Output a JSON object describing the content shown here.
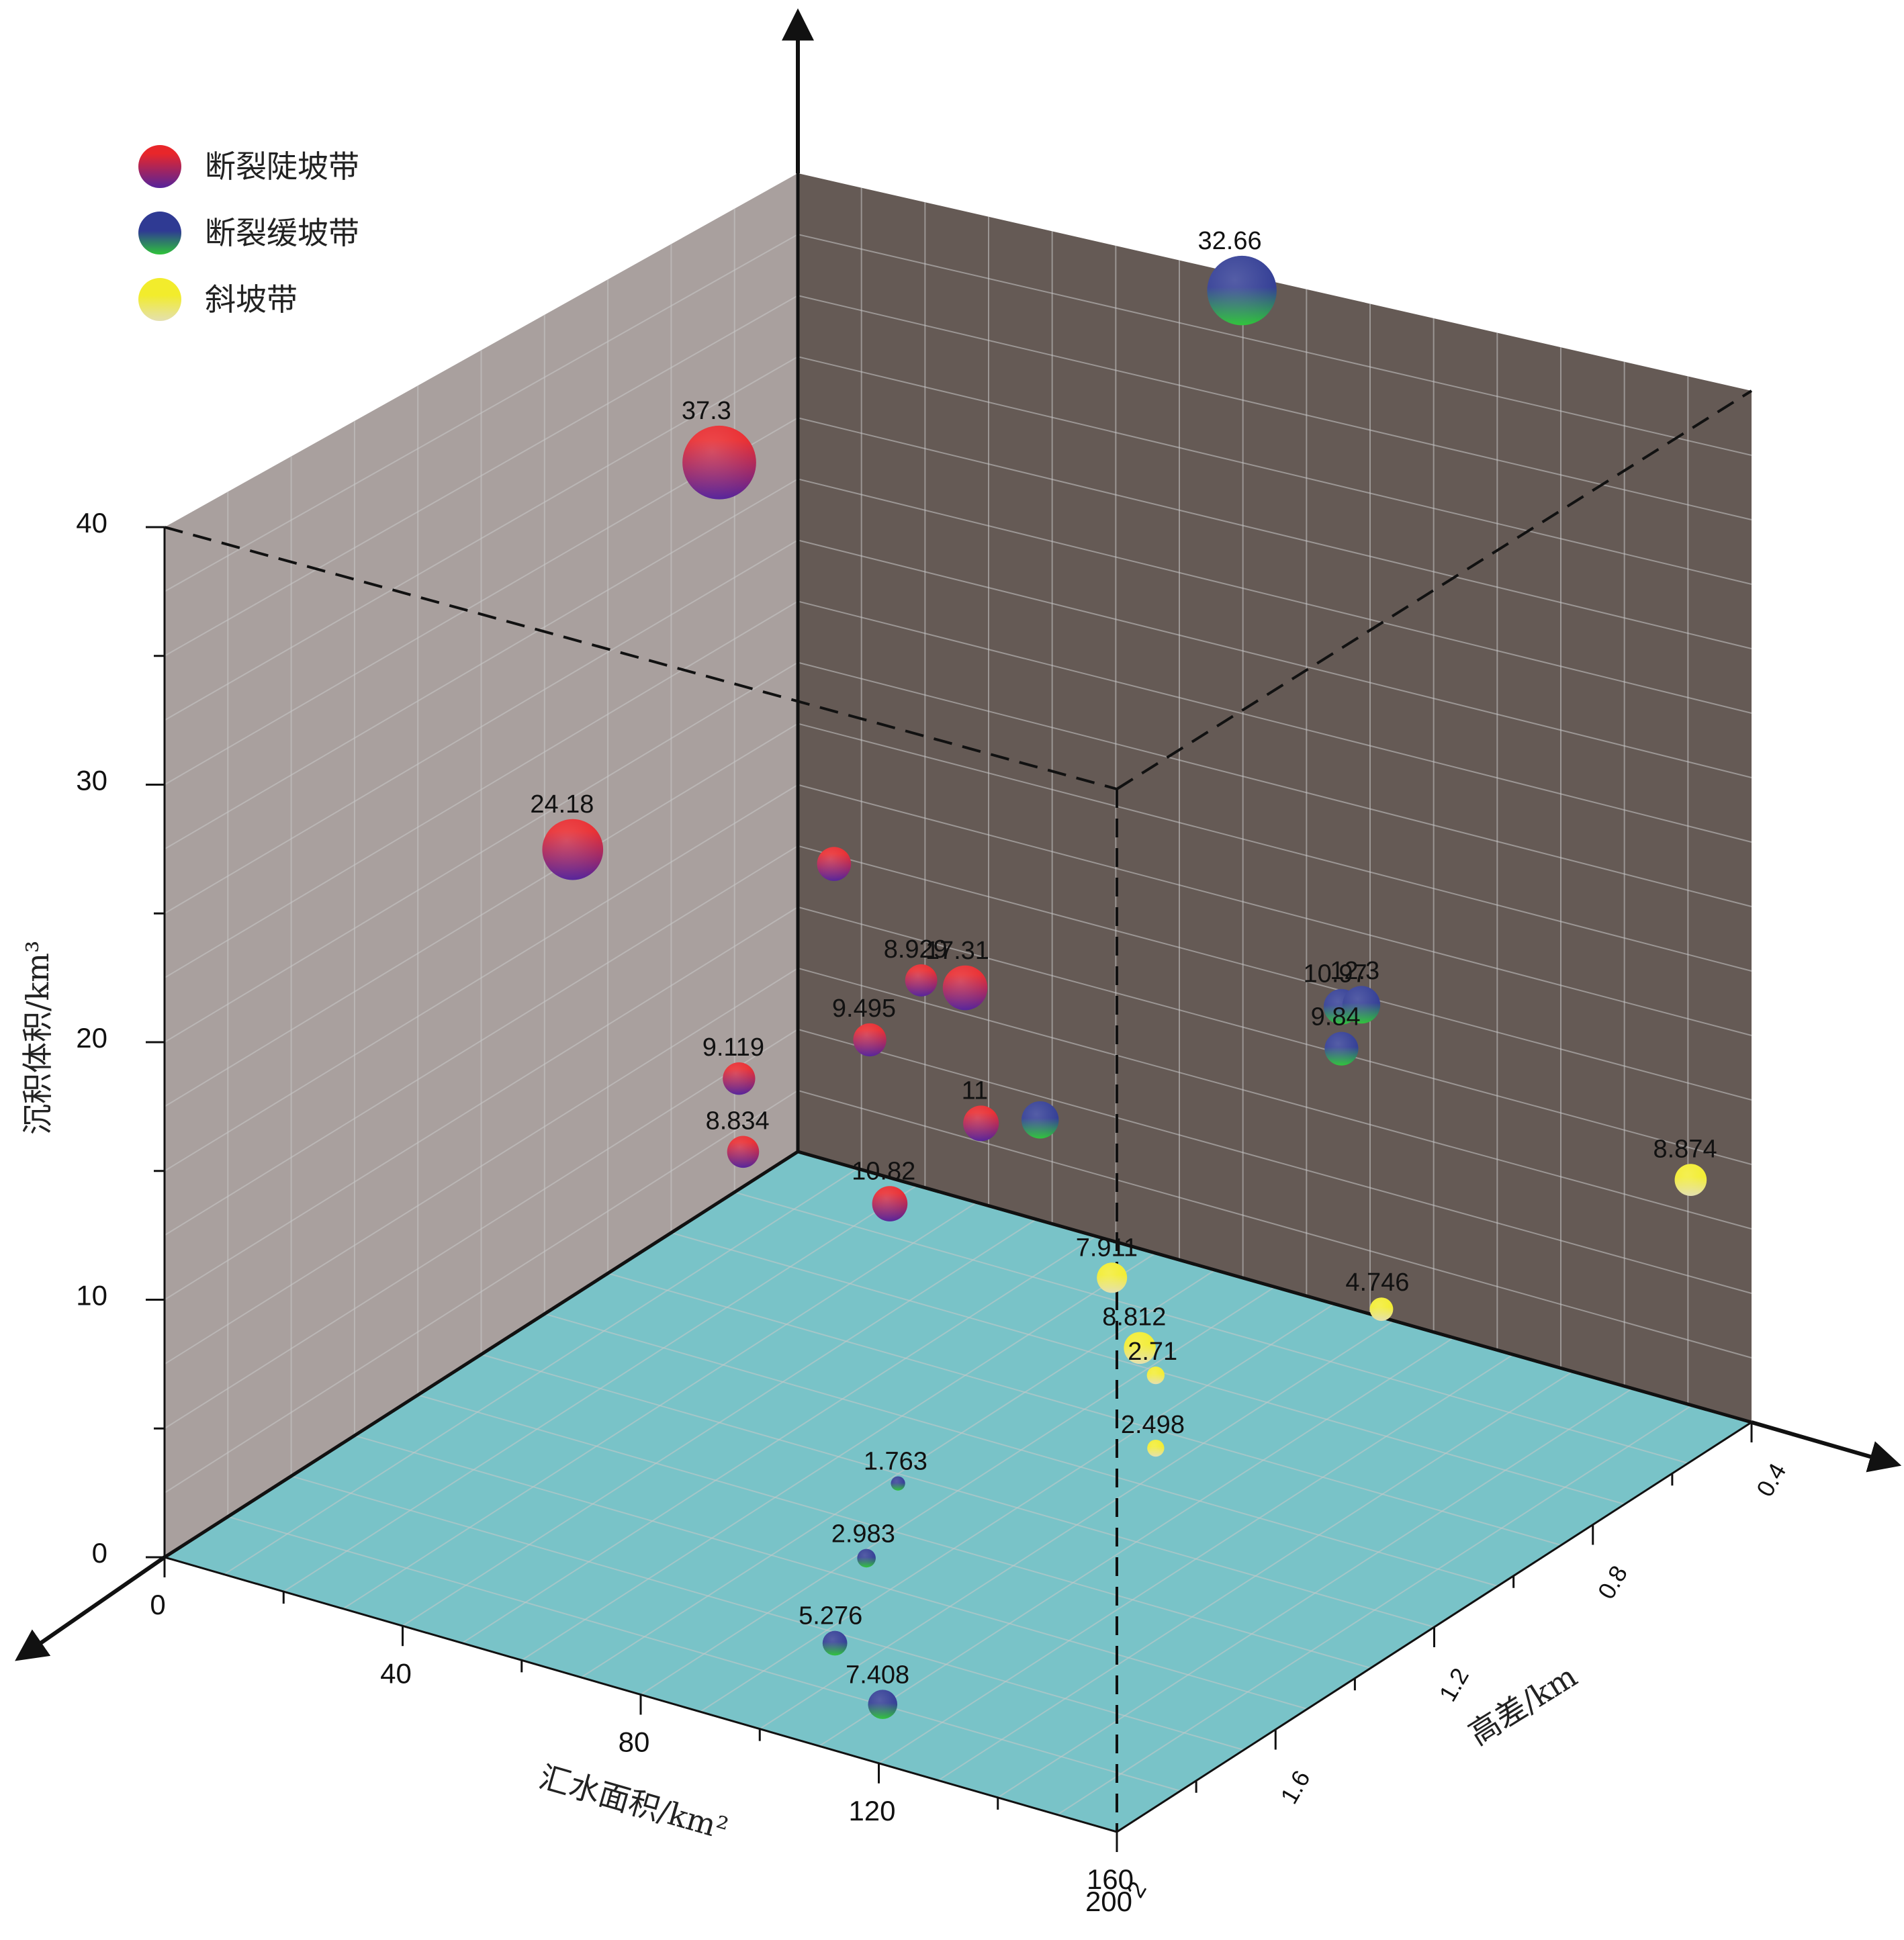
{
  "chart_data": {
    "type": "scatter",
    "title": "",
    "xlabel": "汇水面积/km²",
    "ylabel": "高差/km",
    "zlabel": "沉积体积/km³",
    "x_ticks": [
      "0",
      "40",
      "80",
      "120",
      "160"
    ],
    "y_ticks": [
      "0.4",
      "0.8",
      "1.2",
      "1.6",
      "2"
    ],
    "z_ticks": [
      "0",
      "10",
      "20",
      "30",
      "40"
    ],
    "x_tick_overlap_label": "200",
    "legend_position": "top-left",
    "legend": [
      {
        "name": "断裂陡坡带",
        "color_top": "#e8262a",
        "color_bottom": "#5a2a9a"
      },
      {
        "name": "断裂缓坡带",
        "color_top": "#2f3a93",
        "color_bottom": "#2fbf3f"
      },
      {
        "name": "斜坡带",
        "color_top": "#f2ec2c",
        "color_bottom": "#e6e2a8"
      }
    ],
    "colors": {
      "left_wall": "#a9a09e",
      "back_wall": "#655a55",
      "floor": "#79c3c8",
      "grid_line": "#c9c9c9",
      "axis": "#111111"
    },
    "series": [
      {
        "name": "断裂陡坡带",
        "points": [
          {
            "label": "37.3",
            "x": 40,
            "y": 1.2,
            "z": 37.3,
            "volume": 37.3
          },
          {
            "label": "24.18",
            "x": 32,
            "y": 1.45,
            "z": 24.2,
            "volume": 24.18
          },
          {
            "label": "",
            "x": 36,
            "y": 0.85,
            "z": 18.0,
            "volume": 10.0
          },
          {
            "label": "17.31",
            "x": 68,
            "y": 1.0,
            "z": 16.8,
            "volume": 17.31
          },
          {
            "label": "11",
            "x": 72,
            "y": 1.02,
            "z": 12.0,
            "volume": 11.0
          },
          {
            "label": "8.929",
            "x": 42,
            "y": 0.72,
            "z": 12.6,
            "volume": 8.929
          },
          {
            "label": "9.495",
            "x": 44,
            "y": 0.88,
            "z": 12.0,
            "volume": 9.495
          },
          {
            "label": "9.119",
            "x": 34,
            "y": 1.06,
            "z": 11.6,
            "volume": 9.119
          },
          {
            "label": "8.834",
            "x": 44,
            "y": 1.2,
            "z": 10.8,
            "volume": 8.834
          },
          {
            "label": "10.82",
            "x": 62,
            "y": 1.1,
            "z": 9.0,
            "volume": 10.82
          }
        ]
      },
      {
        "name": "断裂缓坡带",
        "points": [
          {
            "label": "32.66",
            "x": 48,
            "y": 0.0,
            "z": 32.7,
            "volume": 32.66
          },
          {
            "label": "10.97",
            "x": 88,
            "y": 0.35,
            "z": 11.0,
            "volume": 10.97
          },
          {
            "label": "9.84",
            "x": 90,
            "y": 0.38,
            "z": 9.8,
            "volume": 9.84
          },
          {
            "label": "12.3",
            "x": 96,
            "y": 0.42,
            "z": 12.3,
            "volume": 12.3
          },
          {
            "label": "",
            "x": 54,
            "y": 0.6,
            "z": 6.8,
            "volume": 12.0
          },
          {
            "label": "1.763",
            "x": 80,
            "y": 1.35,
            "z": 1.8,
            "volume": 1.763
          },
          {
            "label": "2.983",
            "x": 88,
            "y": 1.55,
            "z": 1.4,
            "volume": 2.983
          },
          {
            "label": "5.276",
            "x": 96,
            "y": 1.75,
            "z": 0.6,
            "volume": 5.276
          },
          {
            "label": "7.408",
            "x": 114,
            "y": 1.9,
            "z": 0.9,
            "volume": 7.408
          }
        ]
      },
      {
        "name": "斜坡带",
        "points": [
          {
            "label": "7.911",
            "x": 96,
            "y": 1.05,
            "z": 7.9,
            "volume": 7.911
          },
          {
            "label": "8.812",
            "x": 104,
            "y": 1.1,
            "z": 6.2,
            "volume": 8.812
          },
          {
            "label": "2.71",
            "x": 108,
            "y": 1.12,
            "z": 5.6,
            "volume": 2.71
          },
          {
            "label": "2.498",
            "x": 110,
            "y": 1.15,
            "z": 3.2,
            "volume": 2.498
          },
          {
            "label": "4.746",
            "x": 118,
            "y": 0.7,
            "z": 4.7,
            "volume": 4.746
          },
          {
            "label": "8.874",
            "x": 150,
            "y": 0.4,
            "z": 8.9,
            "volume": 8.874
          }
        ]
      }
    ]
  }
}
